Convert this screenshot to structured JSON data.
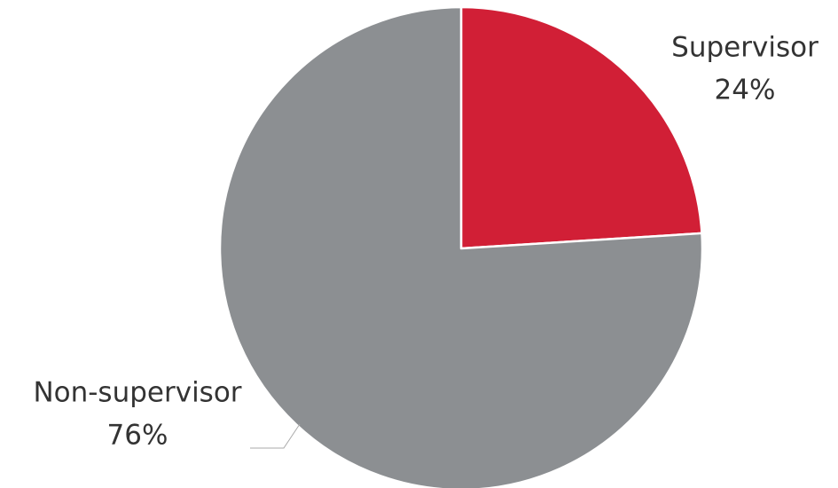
{
  "chart_data": {
    "type": "pie",
    "categories": [
      "Supervisor",
      "Non-supervisor"
    ],
    "values": [
      24,
      76
    ],
    "value_labels": [
      "24%",
      "76%"
    ],
    "colors": [
      "#d11f36",
      "#8c8f92"
    ]
  }
}
